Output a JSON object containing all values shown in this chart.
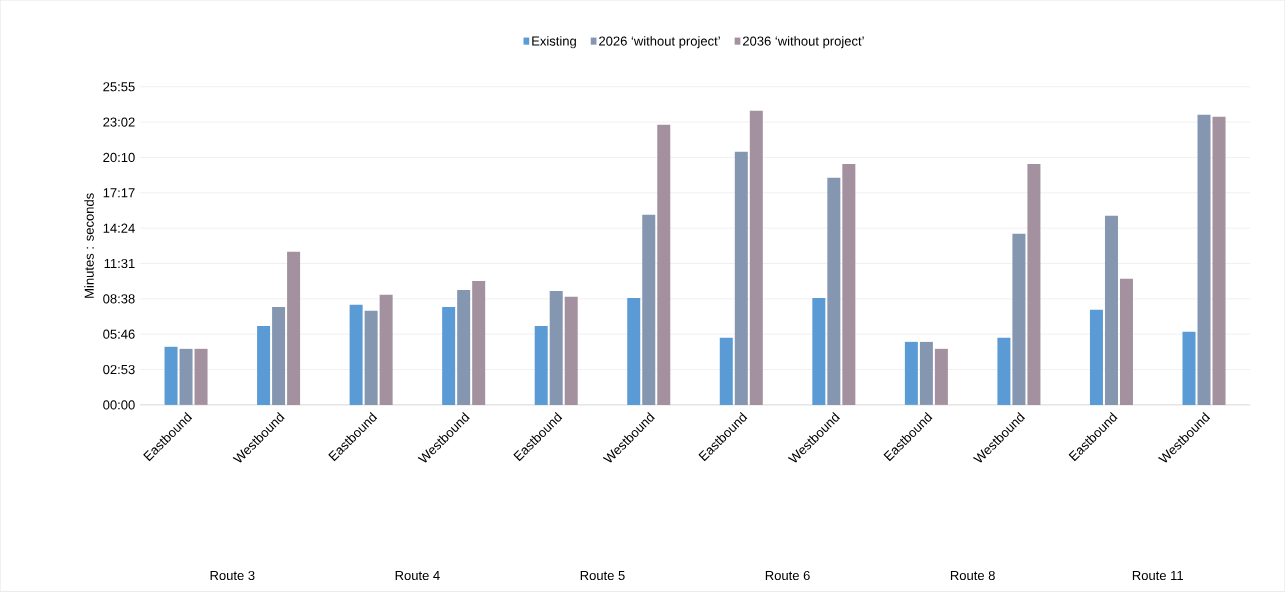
{
  "chart_data": {
    "type": "bar",
    "ylabel": "Minutes : seconds",
    "categories": [
      "Eastbound",
      "Westbound",
      "Eastbound",
      "Westbound",
      "Eastbound",
      "Westbound",
      "Eastbound",
      "Westbound",
      "Eastbound",
      "Westbound",
      "Eastbound",
      "Westbound"
    ],
    "series": [
      {
        "name": "Existing",
        "color": "#5b9bd5",
        "values": [
          284,
          386,
          489,
          479,
          386,
          523,
          328,
          523,
          308,
          328,
          465,
          357
        ]
      },
      {
        "name": "2026 ‘without project’",
        "color": "#8496b0",
        "values": [
          274,
          479,
          460,
          562,
          557,
          929,
          1237,
          1110,
          308,
          836,
          924,
          1418
        ]
      },
      {
        "name": "2036 ‘without project’",
        "color": "#a3919f",
        "values": [
          274,
          748,
          538,
          606,
          528,
          1369,
          1438,
          1178,
          274,
          1178,
          616,
          1408
        ]
      }
    ],
    "ylim": [
      0,
      1555.2
    ],
    "yticks": [
      {
        "value": 0,
        "label": "00:00"
      },
      {
        "value": 172.8,
        "label": "02:53"
      },
      {
        "value": 345.6,
        "label": "05:46"
      },
      {
        "value": 518.4,
        "label": "08:38"
      },
      {
        "value": 691.2,
        "label": "11:31"
      },
      {
        "value": 864,
        "label": "14:24"
      },
      {
        "value": 1036.8,
        "label": "17:17"
      },
      {
        "value": 1209.6,
        "label": "20:10"
      },
      {
        "value": 1382.4,
        "label": "23:02"
      },
      {
        "value": 1555.2,
        "label": "25:55"
      }
    ],
    "annotations": [
      "Route 3",
      "Route 4",
      "Route 5",
      "Route 6",
      "Route 8",
      "Route 11"
    ],
    "grid": "y",
    "legend": "top"
  }
}
